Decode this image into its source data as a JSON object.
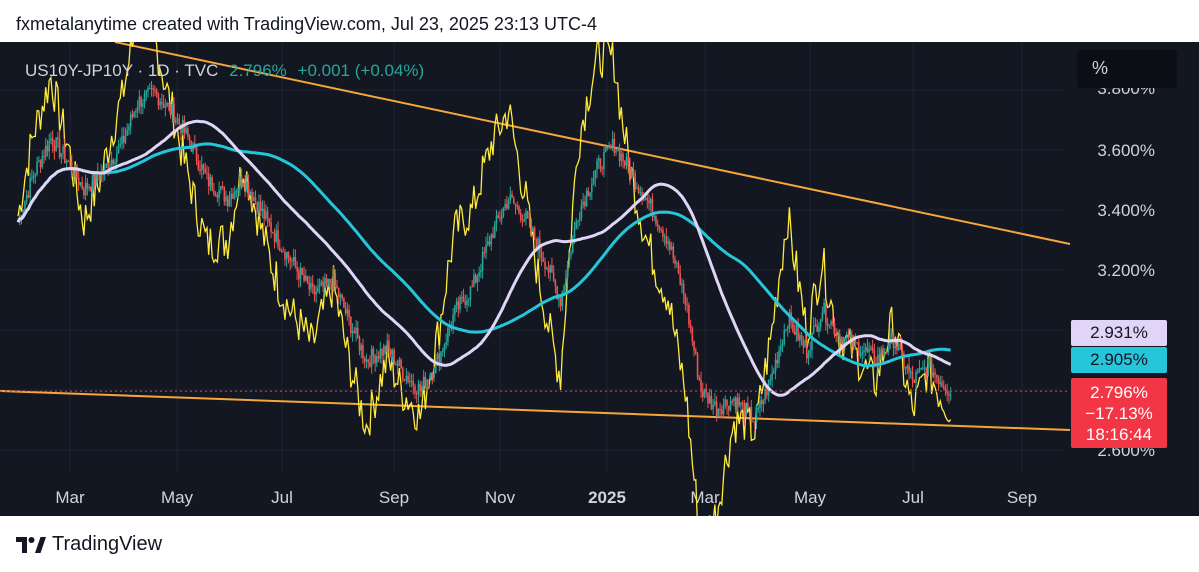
{
  "header": {
    "credit": "fxmetalanytime created with TradingView.com, Jul 23, 2025 23:13 UTC-4"
  },
  "legend": {
    "symbol": "US10Y-JP10Y · 1D · TVC",
    "price": "2.796%",
    "change": "+0.001 (+0.04%)"
  },
  "unit_label": "%",
  "price_tags": {
    "wma": "2.931%",
    "ema": "2.905%",
    "last_price": "2.796%",
    "last_change": "−17.13%",
    "countdown": "18:16:44"
  },
  "footer": {
    "brand": "TradingView"
  },
  "colors": {
    "background": "#131722",
    "up": "#26a69a",
    "down": "#ef5350",
    "oscillator": "#ffeb3b",
    "ema": "#26c6da",
    "wma": "#e1d5f7",
    "trendline": "#f7a63c",
    "last_price": "#f23645"
  },
  "chart_data": {
    "type": "candlestick",
    "series_label": "US10Y-JP10Y",
    "y_axis": {
      "ticks": [
        "3.600%",
        "3.400%",
        "3.200%",
        "2.600%"
      ],
      "partial_top_tick": "3.800%"
    },
    "x_axis": {
      "ticks": [
        "Mar",
        "May",
        "Jul",
        "Sep",
        "Nov",
        "2025",
        "Mar",
        "May",
        "Jul",
        "Sep"
      ]
    },
    "close_path": [
      [
        "2024-02-01",
        3.36
      ],
      [
        "2024-02-10",
        3.52
      ],
      [
        "2024-02-20",
        3.64
      ],
      [
        "2024-03-01",
        3.56
      ],
      [
        "2024-03-10",
        3.47
      ],
      [
        "2024-03-20",
        3.52
      ],
      [
        "2024-04-01",
        3.62
      ],
      [
        "2024-04-10",
        3.76
      ],
      [
        "2024-04-20",
        3.79
      ],
      [
        "2024-05-01",
        3.72
      ],
      [
        "2024-05-10",
        3.63
      ],
      [
        "2024-05-20",
        3.5
      ],
      [
        "2024-06-01",
        3.44
      ],
      [
        "2024-06-10",
        3.51
      ],
      [
        "2024-06-20",
        3.4
      ],
      [
        "2024-07-01",
        3.29
      ],
      [
        "2024-07-10",
        3.21
      ],
      [
        "2024-07-20",
        3.12
      ],
      [
        "2024-08-01",
        3.16
      ],
      [
        "2024-08-10",
        3.03
      ],
      [
        "2024-08-20",
        2.9
      ],
      [
        "2024-09-01",
        2.94
      ],
      [
        "2024-09-10",
        2.86
      ],
      [
        "2024-09-20",
        2.8
      ],
      [
        "2024-10-01",
        2.91
      ],
      [
        "2024-10-10",
        3.06
      ],
      [
        "2024-10-20",
        3.14
      ],
      [
        "2024-11-01",
        3.33
      ],
      [
        "2024-11-10",
        3.44
      ],
      [
        "2024-11-20",
        3.37
      ],
      [
        "2024-12-01",
        3.23
      ],
      [
        "2024-12-10",
        3.1
      ],
      [
        "2024-12-20",
        3.39
      ],
      [
        "2025-01-01",
        3.55
      ],
      [
        "2025-01-10",
        3.62
      ],
      [
        "2025-01-20",
        3.52
      ],
      [
        "2025-02-01",
        3.4
      ],
      [
        "2025-02-10",
        3.3
      ],
      [
        "2025-02-20",
        3.1
      ],
      [
        "2025-03-01",
        2.8
      ],
      [
        "2025-03-10",
        2.74
      ],
      [
        "2025-03-20",
        2.77
      ],
      [
        "2025-04-01",
        2.7
      ],
      [
        "2025-04-10",
        2.83
      ],
      [
        "2025-04-20",
        3.04
      ],
      [
        "2025-05-01",
        2.93
      ],
      [
        "2025-05-10",
        3.07
      ],
      [
        "2025-05-20",
        2.98
      ],
      [
        "2025-06-01",
        2.94
      ],
      [
        "2025-06-10",
        2.9
      ],
      [
        "2025-06-20",
        2.97
      ],
      [
        "2025-07-01",
        2.83
      ],
      [
        "2025-07-10",
        2.88
      ],
      [
        "2025-07-23",
        2.796
      ]
    ]
  }
}
